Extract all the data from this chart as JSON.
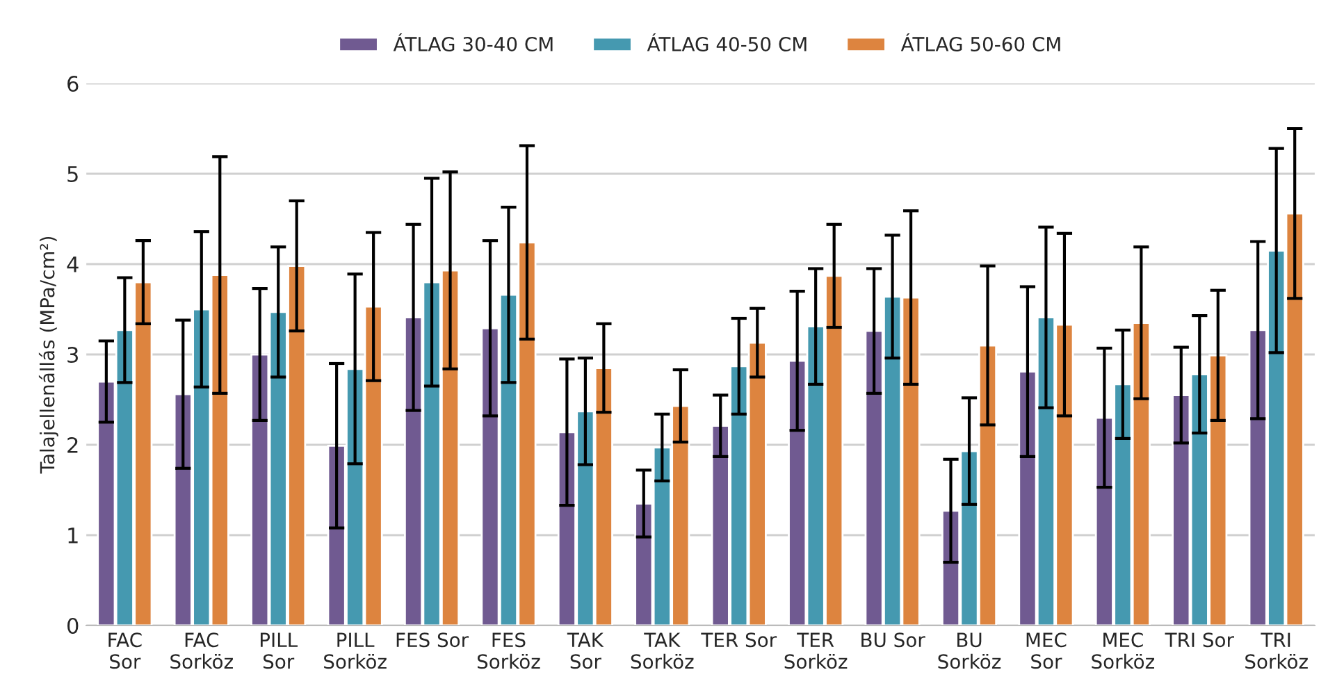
{
  "chart_data": {
    "type": "bar",
    "ylabel": "Talajellenállás (MPa/cm²)",
    "categories": [
      "FAC\nSor",
      "FAC\nSorköz",
      "PILL\nSor",
      "PILL\nSorköz",
      "FES Sor",
      "FES\nSorköz",
      "TAK\nSor",
      "TAK\nSorköz",
      "TER Sor",
      "TER\nSorköz",
      "BU Sor",
      "BU\nSorköz",
      "MEC\nSor",
      "MEC\nSorköz",
      "TRI Sor",
      "TRI\nSorköz"
    ],
    "series": [
      {
        "name": "ÁTLAG 30-40 CM",
        "color": "#705a91",
        "values": [
          2.7,
          2.56,
          3.0,
          1.99,
          3.41,
          3.29,
          2.14,
          1.35,
          2.21,
          2.93,
          3.26,
          1.27,
          2.81,
          2.3,
          2.55,
          3.27
        ],
        "errors": [
          0.45,
          0.82,
          0.73,
          0.91,
          1.03,
          0.97,
          0.81,
          0.37,
          0.34,
          0.77,
          0.69,
          0.57,
          0.94,
          0.77,
          0.53,
          0.98
        ]
      },
      {
        "name": "ÁTLAG 40-50 CM",
        "color": "#4599b0",
        "values": [
          3.27,
          3.5,
          3.47,
          2.84,
          3.8,
          3.66,
          2.37,
          1.97,
          2.87,
          3.31,
          3.64,
          1.93,
          3.41,
          2.67,
          2.78,
          4.15
        ],
        "errors": [
          0.58,
          0.86,
          0.72,
          1.05,
          1.15,
          0.97,
          0.59,
          0.37,
          0.53,
          0.64,
          0.68,
          0.59,
          1.0,
          0.6,
          0.65,
          1.13
        ]
      },
      {
        "name": "ÁTLAG 50-60 CM",
        "color": "#dd843f",
        "values": [
          3.8,
          3.88,
          3.98,
          3.53,
          3.93,
          4.24,
          2.85,
          2.43,
          3.13,
          3.87,
          3.63,
          3.1,
          3.33,
          3.35,
          2.99,
          4.56
        ],
        "errors": [
          0.46,
          1.31,
          0.72,
          0.82,
          1.09,
          1.07,
          0.49,
          0.4,
          0.38,
          0.57,
          0.96,
          0.88,
          1.01,
          0.84,
          0.72,
          0.94
        ]
      }
    ],
    "ylim": [
      0,
      6
    ],
    "yticks": [
      0,
      1,
      2,
      3,
      4,
      5,
      6
    ],
    "grid": "y",
    "legend": "top"
  }
}
